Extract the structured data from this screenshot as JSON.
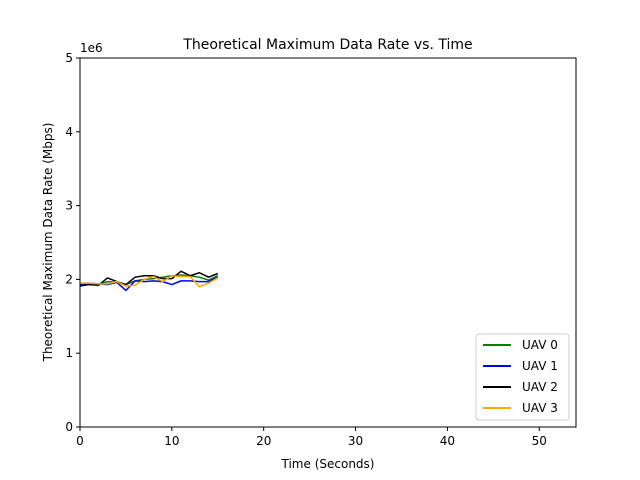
{
  "chart_data": {
    "type": "line",
    "title": "Theoretical Maximum Data Rate vs. Time",
    "xlabel": "Time (Seconds)",
    "ylabel": "Theoretical Maximum Data Rate (Mbps)",
    "y_offset_label": "1e6",
    "xlim": [
      0,
      54
    ],
    "ylim": [
      0,
      5
    ],
    "xticks": [
      0,
      10,
      20,
      30,
      40,
      50
    ],
    "yticks": [
      0,
      1,
      2,
      3,
      4,
      5
    ],
    "grid": false,
    "legend_position": "lower-right",
    "x": [
      0,
      1,
      2,
      3,
      4,
      5,
      6,
      7,
      8,
      9,
      10,
      11,
      12,
      13,
      14,
      15
    ],
    "series": [
      {
        "name": "UAV 0",
        "color": "#008000",
        "values": [
          1.93,
          1.94,
          1.93,
          1.97,
          1.96,
          1.93,
          1.98,
          2.0,
          2.01,
          2.03,
          2.05,
          2.06,
          2.05,
          2.03,
          1.99,
          2.05
        ]
      },
      {
        "name": "UAV 1",
        "color": "#0000ff",
        "values": [
          1.92,
          1.95,
          1.94,
          1.93,
          1.96,
          1.85,
          1.98,
          1.97,
          1.98,
          1.97,
          1.93,
          1.98,
          1.98,
          1.97,
          1.97,
          2.03
        ]
      },
      {
        "name": "UAV 2",
        "color": "#000000",
        "values": [
          1.91,
          1.93,
          1.92,
          2.02,
          1.97,
          1.93,
          2.03,
          2.05,
          2.05,
          2.01,
          2.01,
          2.11,
          2.05,
          2.09,
          2.03,
          2.08
        ]
      },
      {
        "name": "UAV 3",
        "color": "#ffa500",
        "values": [
          1.95,
          1.95,
          1.94,
          1.94,
          1.97,
          1.91,
          1.92,
          2.0,
          2.04,
          1.97,
          2.05,
          2.04,
          2.04,
          1.9,
          1.95,
          2.02
        ]
      }
    ]
  }
}
